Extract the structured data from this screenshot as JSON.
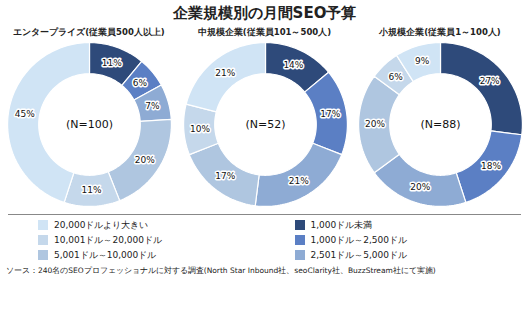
{
  "title": "企業規模別の月間SEO予算",
  "caption": "ソース：240名のSEOプロフェッショナルに対する調査(North Star Inbound社、seoClarity社、BuzzStream社にて実施)",
  "chart_data": [
    {
      "type": "pie",
      "title": "エンタープライズ(従業員500人以上)",
      "categories": [
        "1,000ドル未満",
        "1,000ドル～2,500ドル",
        "2,501ドル～5,000ドル",
        "5,001ドル～10,000ドル",
        "10,001ドル～20,000ドル",
        "20,000ドルより大きい"
      ],
      "values": [
        11,
        6,
        7,
        20,
        11,
        45
      ],
      "value_labels": [
        "11%",
        "6%",
        "7%",
        "20%",
        "11%",
        "45%"
      ],
      "colors": [
        "#2e4a7a",
        "#5b7fc4",
        "#8eabd4",
        "#afc6e0",
        "#c5d8eb",
        "#d0e4f5"
      ],
      "annotations": [
        "(N=100)"
      ],
      "data_labels": true,
      "legend": "bottom"
    },
    {
      "type": "pie",
      "title": "中規模企業(従業員101～500人)",
      "categories": [
        "1,000ドル未満",
        "1,000ドル～2,500ドル",
        "2,501ドル～5,000ドル",
        "5,001ドル～10,000ドル",
        "10,001ドル～20,000ドル",
        "20,000ドルより大きい"
      ],
      "values": [
        14,
        17,
        21,
        17,
        10,
        21
      ],
      "value_labels": [
        "14%",
        "17%",
        "21%",
        "17%",
        "10%",
        "21%"
      ],
      "colors": [
        "#2e4a7a",
        "#5b7fc4",
        "#8eabd4",
        "#afc6e0",
        "#c5d8eb",
        "#d0e4f5"
      ],
      "annotations": [
        "(N=52)"
      ],
      "data_labels": true,
      "legend": "bottom"
    },
    {
      "type": "pie",
      "title": "小規模企業(従業員1～100人)",
      "categories": [
        "1,000ドル未満",
        "1,000ドル～2,500ドル",
        "2,501ドル～5,000ドル",
        "5,001ドル～10,000ドル",
        "10,001ドル～20,000ドル",
        "20,000ドルより大きい"
      ],
      "values": [
        27,
        18,
        20,
        20,
        6,
        9
      ],
      "value_labels": [
        "27%",
        "18%",
        "20%",
        "20%",
        "6%",
        "9%"
      ],
      "colors": [
        "#2e4a7a",
        "#5b7fc4",
        "#8eabd4",
        "#afc6e0",
        "#c5d8eb",
        "#d0e4f5"
      ],
      "annotations": [
        "(N=88)"
      ],
      "data_labels": true,
      "legend": "bottom"
    }
  ]
}
